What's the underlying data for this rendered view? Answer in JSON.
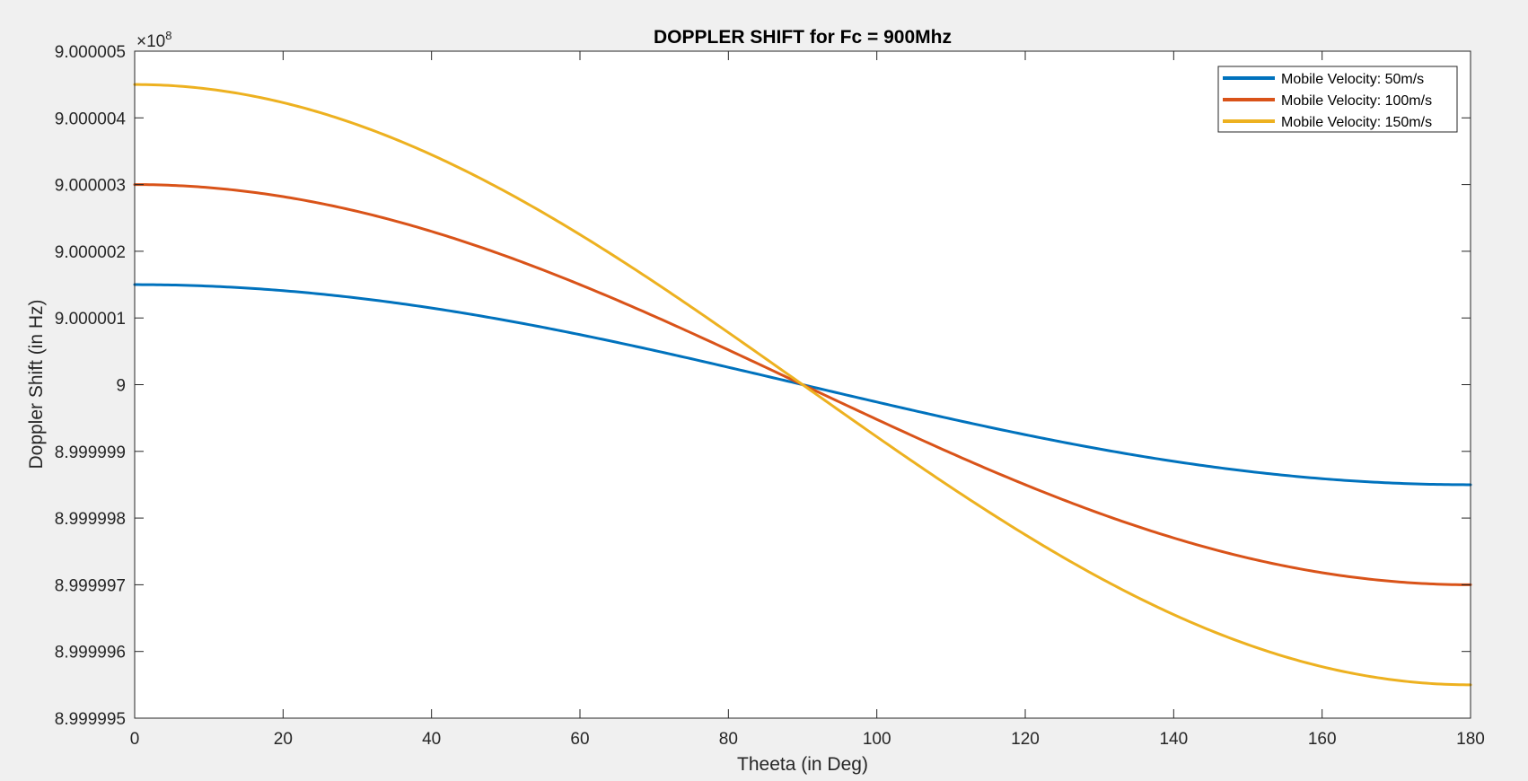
{
  "chart_data": {
    "type": "line",
    "title": "DOPPLER SHIFT for Fc = 900Mhz",
    "xlabel": "Theeta (in Deg)",
    "ylabel": "Doppler Shift (in Hz)",
    "y_exponent_base": "×10",
    "y_exponent_power": "8",
    "xlim": [
      0,
      180
    ],
    "ylim": [
      8.999995,
      9.000005
    ],
    "x_ticks": [
      0,
      20,
      40,
      60,
      80,
      100,
      120,
      140,
      160,
      180
    ],
    "x_tick_labels": [
      "0",
      "20",
      "40",
      "60",
      "80",
      "100",
      "120",
      "140",
      "160",
      "180"
    ],
    "y_ticks": [
      8.999995,
      8.999996,
      8.999997,
      8.999998,
      8.999999,
      9,
      9.000001,
      9.000002,
      9.000003,
      9.000004,
      9.000005
    ],
    "y_tick_labels": [
      "8.999995",
      "8.999996",
      "8.999997",
      "8.999998",
      "8.999999",
      "9",
      "9.000001",
      "9.000002",
      "9.000003",
      "9.000004",
      "9.000005"
    ],
    "grid": false,
    "legend_position": "top-right",
    "x": [
      0,
      10,
      20,
      30,
      40,
      50,
      60,
      70,
      80,
      90,
      100,
      110,
      120,
      130,
      140,
      150,
      160,
      170,
      180
    ],
    "series": [
      {
        "name": "Mobile Velocity: 50m/s",
        "color": "#0072BD",
        "values": [
          9.0000015,
          9.00000148,
          9.00000141,
          9.0000013,
          9.00000115,
          9.00000096,
          9.00000075,
          9.00000051,
          9.00000026,
          9.0,
          8.99999974,
          8.99999949,
          8.99999925,
          8.99999904,
          8.99999885,
          8.9999987,
          8.99999859,
          8.99999852,
          8.9999985
        ]
      },
      {
        "name": "Mobile Velocity: 100m/s",
        "color": "#D95319",
        "values": [
          9.000003,
          9.00000295,
          9.00000282,
          9.0000026,
          9.0000023,
          9.00000193,
          9.0000015,
          9.00000103,
          9.00000052,
          9.0,
          8.99999948,
          8.99999897,
          8.9999985,
          8.99999807,
          8.9999977,
          8.9999974,
          8.99999718,
          8.99999705,
          8.999997
        ]
      },
      {
        "name": "Mobile Velocity: 150m/s",
        "color": "#EDB120",
        "values": [
          9.0000045,
          9.00000443,
          9.00000423,
          9.0000039,
          9.00000345,
          9.00000289,
          9.00000225,
          9.00000154,
          9.00000078,
          9.0,
          8.99999922,
          8.99999846,
          8.99999775,
          8.99999711,
          8.99999655,
          8.9999961,
          8.99999577,
          8.99999557,
          8.9999955
        ]
      }
    ]
  }
}
